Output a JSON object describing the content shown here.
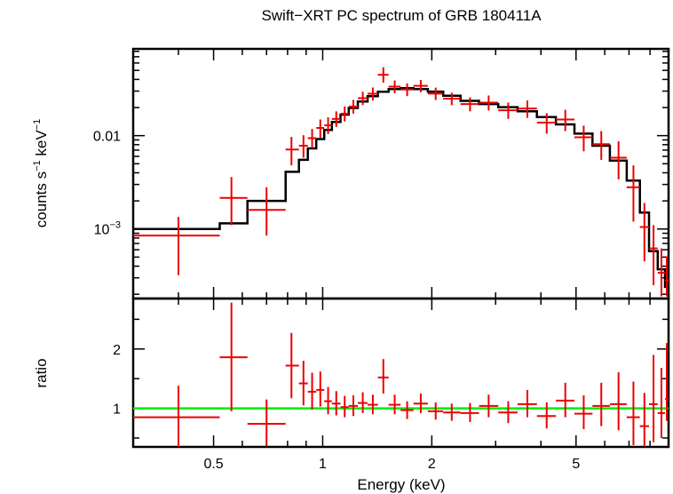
{
  "chart_data": {
    "type": "scatter",
    "title": "Swift−XRT PC spectrum of GRB 180411A",
    "xlabel": "Energy (keV)",
    "x_scale": "log",
    "x_range": [
      0.3,
      9.0
    ],
    "x_ticks": [
      {
        "value": 0.5,
        "label": "0.5"
      },
      {
        "value": 1,
        "label": "1"
      },
      {
        "value": 2,
        "label": "2"
      },
      {
        "value": 5,
        "label": "5"
      }
    ],
    "colors": {
      "data": "#ee0000",
      "model": "#000000",
      "unity": "#00ee00"
    },
    "top_panel": {
      "ylabel_main": "counts s",
      "ylabel_sup1": "−1",
      "ylabel_mid": " keV",
      "ylabel_sup2": "−1",
      "y_scale": "log",
      "y_range": [
        0.00018,
        0.085
      ],
      "y_ticks": [
        {
          "value": 0.01,
          "label_main": "0.01",
          "label_sup": ""
        },
        {
          "value": 0.001,
          "label_main": "10",
          "label_sup": "−3"
        }
      ],
      "model_steps": [
        {
          "x0": 0.3,
          "x1": 0.52,
          "y": 0.001
        },
        {
          "x0": 0.52,
          "x1": 0.62,
          "y": 0.00115
        },
        {
          "x0": 0.62,
          "x1": 0.79,
          "y": 0.002
        },
        {
          "x0": 0.79,
          "x1": 0.86,
          "y": 0.0041
        },
        {
          "x0": 0.86,
          "x1": 0.91,
          "y": 0.0055
        },
        {
          "x0": 0.91,
          "x1": 0.96,
          "y": 0.0073
        },
        {
          "x0": 0.96,
          "x1": 1.01,
          "y": 0.0092
        },
        {
          "x0": 1.01,
          "x1": 1.06,
          "y": 0.0115
        },
        {
          "x0": 1.06,
          "x1": 1.12,
          "y": 0.014
        },
        {
          "x0": 1.12,
          "x1": 1.18,
          "y": 0.0168
        },
        {
          "x0": 1.18,
          "x1": 1.25,
          "y": 0.0198
        },
        {
          "x0": 1.25,
          "x1": 1.33,
          "y": 0.0232
        },
        {
          "x0": 1.33,
          "x1": 1.42,
          "y": 0.0265
        },
        {
          "x0": 1.42,
          "x1": 1.52,
          "y": 0.0295
        },
        {
          "x0": 1.52,
          "x1": 1.64,
          "y": 0.0315
        },
        {
          "x0": 1.64,
          "x1": 1.78,
          "y": 0.0323
        },
        {
          "x0": 1.78,
          "x1": 1.95,
          "y": 0.0315
        },
        {
          "x0": 1.95,
          "x1": 2.15,
          "y": 0.0296
        },
        {
          "x0": 2.15,
          "x1": 2.4,
          "y": 0.0268
        },
        {
          "x0": 2.4,
          "x1": 2.7,
          "y": 0.0236
        },
        {
          "x0": 2.7,
          "x1": 3.05,
          "y": 0.0218
        },
        {
          "x0": 3.05,
          "x1": 3.45,
          "y": 0.0202
        },
        {
          "x0": 3.45,
          "x1": 3.9,
          "y": 0.0182
        },
        {
          "x0": 3.9,
          "x1": 4.4,
          "y": 0.0158
        },
        {
          "x0": 4.4,
          "x1": 4.95,
          "y": 0.0132
        },
        {
          "x0": 4.95,
          "x1": 5.55,
          "y": 0.0105
        },
        {
          "x0": 5.55,
          "x1": 6.2,
          "y": 0.0078
        },
        {
          "x0": 6.2,
          "x1": 6.9,
          "y": 0.0054
        },
        {
          "x0": 6.9,
          "x1": 7.5,
          "y": 0.0033
        },
        {
          "x0": 7.5,
          "x1": 7.95,
          "y": 0.0015
        },
        {
          "x0": 7.95,
          "x1": 8.4,
          "y": 0.00058
        },
        {
          "x0": 8.4,
          "x1": 8.8,
          "y": 0.00037
        },
        {
          "x0": 8.8,
          "x1": 9.0,
          "y": 0.00024
        }
      ],
      "points": [
        {
          "x": 0.4,
          "xlo": 0.3,
          "xhi": 0.52,
          "y": 0.00085,
          "ylo": 0.00032,
          "yhi": 0.00135
        },
        {
          "x": 0.56,
          "xlo": 0.52,
          "xhi": 0.62,
          "y": 0.00215,
          "ylo": 0.0011,
          "yhi": 0.0036
        },
        {
          "x": 0.7,
          "xlo": 0.62,
          "xhi": 0.79,
          "y": 0.0016,
          "ylo": 0.00085,
          "yhi": 0.0028
        },
        {
          "x": 0.82,
          "xlo": 0.79,
          "xhi": 0.86,
          "y": 0.0071,
          "ylo": 0.0048,
          "yhi": 0.0097
        },
        {
          "x": 0.885,
          "xlo": 0.86,
          "xhi": 0.91,
          "y": 0.0078,
          "ylo": 0.0058,
          "yhi": 0.0101
        },
        {
          "x": 0.935,
          "xlo": 0.91,
          "xhi": 0.96,
          "y": 0.0094,
          "ylo": 0.0073,
          "yhi": 0.0118
        },
        {
          "x": 0.985,
          "xlo": 0.96,
          "xhi": 1.01,
          "y": 0.0121,
          "ylo": 0.0095,
          "yhi": 0.0149
        },
        {
          "x": 1.035,
          "xlo": 1.01,
          "xhi": 1.06,
          "y": 0.0129,
          "ylo": 0.0104,
          "yhi": 0.0157
        },
        {
          "x": 1.09,
          "xlo": 1.06,
          "xhi": 1.12,
          "y": 0.0151,
          "ylo": 0.0124,
          "yhi": 0.0182
        },
        {
          "x": 1.15,
          "xlo": 1.12,
          "xhi": 1.18,
          "y": 0.0172,
          "ylo": 0.0142,
          "yhi": 0.0205
        },
        {
          "x": 1.215,
          "xlo": 1.18,
          "xhi": 1.25,
          "y": 0.0205,
          "ylo": 0.0172,
          "yhi": 0.0242
        },
        {
          "x": 1.29,
          "xlo": 1.25,
          "xhi": 1.33,
          "y": 0.0252,
          "ylo": 0.0213,
          "yhi": 0.0295
        },
        {
          "x": 1.375,
          "xlo": 1.33,
          "xhi": 1.42,
          "y": 0.0281,
          "ylo": 0.0238,
          "yhi": 0.0328
        },
        {
          "x": 1.47,
          "xlo": 1.42,
          "xhi": 1.52,
          "y": 0.0448,
          "ylo": 0.037,
          "yhi": 0.054
        },
        {
          "x": 1.58,
          "xlo": 1.52,
          "xhi": 1.64,
          "y": 0.0335,
          "ylo": 0.0285,
          "yhi": 0.039
        },
        {
          "x": 1.71,
          "xlo": 1.64,
          "xhi": 1.78,
          "y": 0.0312,
          "ylo": 0.0265,
          "yhi": 0.0362
        },
        {
          "x": 1.865,
          "xlo": 1.78,
          "xhi": 1.95,
          "y": 0.0341,
          "ylo": 0.0292,
          "yhi": 0.0395
        },
        {
          "x": 2.05,
          "xlo": 1.95,
          "xhi": 2.15,
          "y": 0.0282,
          "ylo": 0.0241,
          "yhi": 0.0327
        },
        {
          "x": 2.27,
          "xlo": 2.15,
          "xhi": 2.4,
          "y": 0.0249,
          "ylo": 0.0212,
          "yhi": 0.0289
        },
        {
          "x": 2.55,
          "xlo": 2.4,
          "xhi": 2.7,
          "y": 0.0218,
          "ylo": 0.0182,
          "yhi": 0.0257
        },
        {
          "x": 2.87,
          "xlo": 2.7,
          "xhi": 3.05,
          "y": 0.0226,
          "ylo": 0.0186,
          "yhi": 0.0269
        },
        {
          "x": 3.25,
          "xlo": 3.05,
          "xhi": 3.45,
          "y": 0.0187,
          "ylo": 0.0151,
          "yhi": 0.0226
        },
        {
          "x": 3.67,
          "xlo": 3.45,
          "xhi": 3.9,
          "y": 0.0195,
          "ylo": 0.0155,
          "yhi": 0.0238
        },
        {
          "x": 4.15,
          "xlo": 3.9,
          "xhi": 4.4,
          "y": 0.0138,
          "ylo": 0.0105,
          "yhi": 0.0174
        },
        {
          "x": 4.67,
          "xlo": 4.4,
          "xhi": 4.95,
          "y": 0.0149,
          "ylo": 0.0112,
          "yhi": 0.0189
        },
        {
          "x": 5.25,
          "xlo": 4.95,
          "xhi": 5.55,
          "y": 0.0096,
          "ylo": 0.0068,
          "yhi": 0.0128
        },
        {
          "x": 5.87,
          "xlo": 5.55,
          "xhi": 6.2,
          "y": 0.0081,
          "ylo": 0.0055,
          "yhi": 0.0112
        },
        {
          "x": 6.55,
          "xlo": 6.2,
          "xhi": 6.9,
          "y": 0.0058,
          "ylo": 0.0034,
          "yhi": 0.0087
        },
        {
          "x": 7.2,
          "xlo": 6.9,
          "xhi": 7.5,
          "y": 0.0028,
          "ylo": 0.0012,
          "yhi": 0.0048
        },
        {
          "x": 7.72,
          "xlo": 7.5,
          "xhi": 7.95,
          "y": 0.00105,
          "ylo": 0.00045,
          "yhi": 0.0019
        },
        {
          "x": 8.18,
          "xlo": 7.95,
          "xhi": 8.4,
          "y": 0.00062,
          "ylo": 0.00025,
          "yhi": 0.0011
        },
        {
          "x": 8.6,
          "xlo": 8.4,
          "xhi": 8.8,
          "y": 0.00034,
          "ylo": 0.00019,
          "yhi": 0.00062
        },
        {
          "x": 8.9,
          "xlo": 8.8,
          "xhi": 9.0,
          "y": 0.00028,
          "ylo": 0.00019,
          "yhi": 0.00051
        }
      ]
    },
    "bottom_panel": {
      "ylabel": "ratio",
      "y_scale": "linear",
      "y_range": [
        0.35,
        2.85
      ],
      "y_ticks": [
        {
          "value": 1,
          "label": "1"
        },
        {
          "value": 2,
          "label": "2"
        }
      ],
      "unity": 1.0,
      "points": [
        {
          "x": 0.4,
          "xlo": 0.3,
          "xhi": 0.52,
          "y": 0.85,
          "ylo": 0.32,
          "yhi": 1.38
        },
        {
          "x": 0.56,
          "xlo": 0.52,
          "xhi": 0.62,
          "y": 1.86,
          "ylo": 0.95,
          "yhi": 2.78
        },
        {
          "x": 0.7,
          "xlo": 0.62,
          "xhi": 0.79,
          "y": 0.74,
          "ylo": 0.38,
          "yhi": 1.15
        },
        {
          "x": 0.82,
          "xlo": 0.79,
          "xhi": 0.86,
          "y": 1.72,
          "ylo": 1.17,
          "yhi": 2.27
        },
        {
          "x": 0.885,
          "xlo": 0.86,
          "xhi": 0.91,
          "y": 1.42,
          "ylo": 1.05,
          "yhi": 1.8
        },
        {
          "x": 0.935,
          "xlo": 0.91,
          "xhi": 0.96,
          "y": 1.28,
          "ylo": 0.98,
          "yhi": 1.6
        },
        {
          "x": 0.985,
          "xlo": 0.96,
          "xhi": 1.01,
          "y": 1.31,
          "ylo": 1.03,
          "yhi": 1.62
        },
        {
          "x": 1.035,
          "xlo": 1.01,
          "xhi": 1.06,
          "y": 1.12,
          "ylo": 0.9,
          "yhi": 1.36
        },
        {
          "x": 1.09,
          "xlo": 1.06,
          "xhi": 1.12,
          "y": 1.08,
          "ylo": 0.88,
          "yhi": 1.29
        },
        {
          "x": 1.15,
          "xlo": 1.12,
          "xhi": 1.18,
          "y": 1.02,
          "ylo": 0.85,
          "yhi": 1.21
        },
        {
          "x": 1.215,
          "xlo": 1.18,
          "xhi": 1.25,
          "y": 1.04,
          "ylo": 0.87,
          "yhi": 1.22
        },
        {
          "x": 1.29,
          "xlo": 1.25,
          "xhi": 1.33,
          "y": 1.09,
          "ylo": 0.92,
          "yhi": 1.27
        },
        {
          "x": 1.375,
          "xlo": 1.33,
          "xhi": 1.42,
          "y": 1.06,
          "ylo": 0.9,
          "yhi": 1.23
        },
        {
          "x": 1.47,
          "xlo": 1.42,
          "xhi": 1.52,
          "y": 1.52,
          "ylo": 1.25,
          "yhi": 1.83
        },
        {
          "x": 1.58,
          "xlo": 1.52,
          "xhi": 1.64,
          "y": 1.06,
          "ylo": 0.9,
          "yhi": 1.23
        },
        {
          "x": 1.71,
          "xlo": 1.64,
          "xhi": 1.78,
          "y": 0.97,
          "ylo": 0.82,
          "yhi": 1.12
        },
        {
          "x": 1.865,
          "xlo": 1.78,
          "xhi": 1.95,
          "y": 1.08,
          "ylo": 0.92,
          "yhi": 1.25
        },
        {
          "x": 2.05,
          "xlo": 1.95,
          "xhi": 2.15,
          "y": 0.95,
          "ylo": 0.81,
          "yhi": 1.1
        },
        {
          "x": 2.27,
          "xlo": 2.15,
          "xhi": 2.4,
          "y": 0.93,
          "ylo": 0.79,
          "yhi": 1.08
        },
        {
          "x": 2.55,
          "xlo": 2.4,
          "xhi": 2.7,
          "y": 0.92,
          "ylo": 0.77,
          "yhi": 1.09
        },
        {
          "x": 2.87,
          "xlo": 2.7,
          "xhi": 3.05,
          "y": 1.04,
          "ylo": 0.85,
          "yhi": 1.23
        },
        {
          "x": 3.25,
          "xlo": 3.05,
          "xhi": 3.45,
          "y": 0.93,
          "ylo": 0.75,
          "yhi": 1.12
        },
        {
          "x": 3.67,
          "xlo": 3.45,
          "xhi": 3.9,
          "y": 1.07,
          "ylo": 0.85,
          "yhi": 1.31
        },
        {
          "x": 4.15,
          "xlo": 3.9,
          "xhi": 4.4,
          "y": 0.87,
          "ylo": 0.66,
          "yhi": 1.1
        },
        {
          "x": 4.67,
          "xlo": 4.4,
          "xhi": 4.95,
          "y": 1.13,
          "ylo": 0.85,
          "yhi": 1.43
        },
        {
          "x": 5.25,
          "xlo": 4.95,
          "xhi": 5.55,
          "y": 0.91,
          "ylo": 0.65,
          "yhi": 1.22
        },
        {
          "x": 5.87,
          "xlo": 5.55,
          "xhi": 6.2,
          "y": 1.04,
          "ylo": 0.7,
          "yhi": 1.43
        },
        {
          "x": 6.55,
          "xlo": 6.2,
          "xhi": 6.9,
          "y": 1.07,
          "ylo": 0.63,
          "yhi": 1.61
        },
        {
          "x": 7.2,
          "xlo": 6.9,
          "xhi": 7.5,
          "y": 0.85,
          "ylo": 0.38,
          "yhi": 1.45
        },
        {
          "x": 7.72,
          "xlo": 7.5,
          "xhi": 7.95,
          "y": 0.7,
          "ylo": 0.36,
          "yhi": 1.26
        },
        {
          "x": 8.18,
          "xlo": 7.95,
          "xhi": 8.4,
          "y": 1.07,
          "ylo": 0.43,
          "yhi": 1.9
        },
        {
          "x": 8.6,
          "xlo": 8.4,
          "xhi": 8.8,
          "y": 0.92,
          "ylo": 0.5,
          "yhi": 1.68
        },
        {
          "x": 8.9,
          "xlo": 8.8,
          "xhi": 9.0,
          "y": 1.16,
          "ylo": 0.79,
          "yhi": 2.1
        }
      ]
    }
  }
}
